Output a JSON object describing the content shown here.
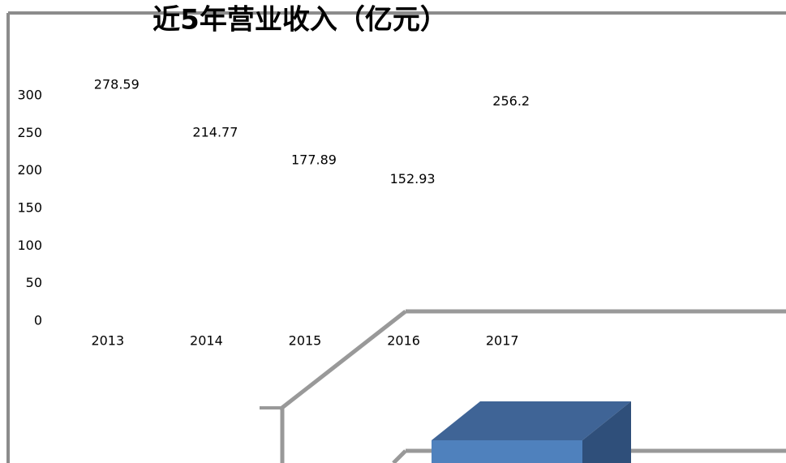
{
  "chart_data": {
    "type": "bar",
    "title": "近5年营业收入（亿元）",
    "categories": [
      "2013",
      "2014",
      "2015",
      "2016",
      "2017"
    ],
    "values": [
      278.59,
      214.77,
      177.89,
      152.93,
      256.2
    ],
    "ylim": [
      0,
      300
    ],
    "yticks": [
      0,
      50,
      100,
      150,
      200,
      250,
      300
    ],
    "grid": false
  }
}
